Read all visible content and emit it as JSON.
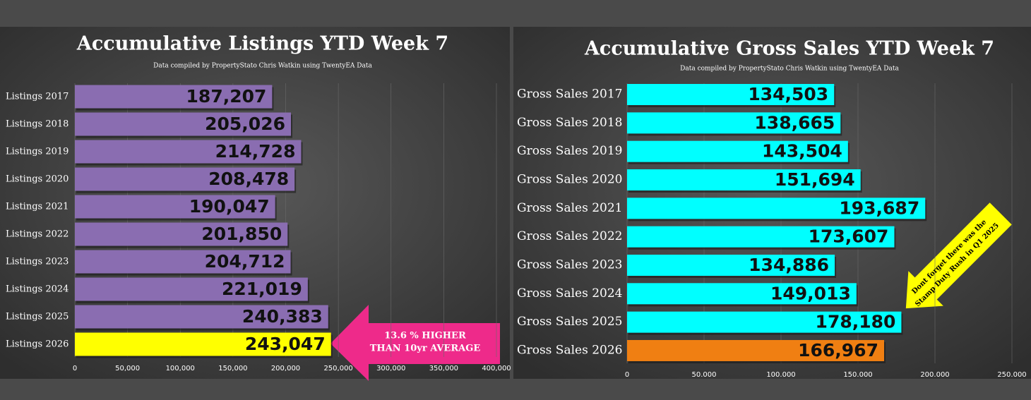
{
  "chart_data": [
    {
      "type": "bar",
      "orientation": "horizontal",
      "title": "Accumulative Listings YTD Week 7",
      "subtitle": "Data compiled by PropertyStato Chris Watkin using TwentyEA Data",
      "categories": [
        "Listings 2017",
        "Listings 2018",
        "Listings 2019",
        "Listings 2020",
        "Listings 2021",
        "Listings 2022",
        "Listings 2023",
        "Listings 2024",
        "Listings 2025",
        "Listings 2026"
      ],
      "values": [
        187207,
        205026,
        214728,
        208478,
        190047,
        201850,
        204712,
        221019,
        240383,
        243047
      ],
      "value_labels": [
        "187,207",
        "205,026",
        "214,728",
        "208,478",
        "190,047",
        "201,850",
        "204,712",
        "221,019",
        "240,383",
        "243,047"
      ],
      "colors": [
        "#8a6db1",
        "#8a6db1",
        "#8a6db1",
        "#8a6db1",
        "#8a6db1",
        "#8a6db1",
        "#8a6db1",
        "#8a6db1",
        "#8a6db1",
        "#ffff00"
      ],
      "xlim": [
        0,
        400000
      ],
      "xticks": [
        0,
        {
          "value": 50000,
          "label": "50,000"
        },
        {
          "value": 100000,
          "label": "100,000"
        },
        {
          "value": 150000,
          "label": "150,000"
        },
        {
          "value": 200000,
          "label": "200,000"
        },
        {
          "value": 250000,
          "label": "250,000"
        },
        {
          "value": 300000,
          "label": "300,000"
        },
        {
          "value": 350000,
          "label": "350,000"
        },
        {
          "value": 400000,
          "label": "400,000"
        }
      ],
      "grid": true,
      "annotation": [
        "13.6 % HIGHER",
        "THAN 10yr AVERAGE"
      ]
    },
    {
      "type": "bar",
      "orientation": "horizontal",
      "title": "Accumulative Gross Sales YTD Week 7",
      "subtitle": "Data compiled by PropertyStato Chris Watkin using TwentyEA Data",
      "categories": [
        "Gross Sales 2017",
        "Gross Sales 2018",
        "Gross Sales 2019",
        "Gross Sales 2020",
        "Gross Sales 2021",
        "Gross Sales 2022",
        "Gross Sales 2023",
        "Gross Sales 2024",
        "Gross Sales 2025",
        "Gross Sales 2026"
      ],
      "values": [
        134503,
        138665,
        143504,
        151694,
        193687,
        173607,
        134886,
        149013,
        178180,
        166967
      ],
      "value_labels": [
        "134,503",
        "138,665",
        "143,504",
        "151,694",
        "193,687",
        "173,607",
        "134,886",
        "149,013",
        "178,180",
        "166,967"
      ],
      "colors": [
        "#00ffff",
        "#00ffff",
        "#00ffff",
        "#00ffff",
        "#00ffff",
        "#00ffff",
        "#00ffff",
        "#00ffff",
        "#00ffff",
        "#f07f12"
      ],
      "xlim": [
        0,
        250000
      ],
      "xticks": [
        0,
        {
          "value": 50000,
          "label": "50.000"
        },
        {
          "value": 100000,
          "label": "100.000"
        },
        {
          "value": 150000,
          "label": "150.000"
        },
        {
          "value": 200000,
          "label": "200.000"
        },
        {
          "value": 250000,
          "label": "250.000"
        }
      ],
      "grid": true,
      "annotation": [
        "Dont forget there was the",
        "Stamp Duty Rush in Q1 2025"
      ]
    }
  ]
}
